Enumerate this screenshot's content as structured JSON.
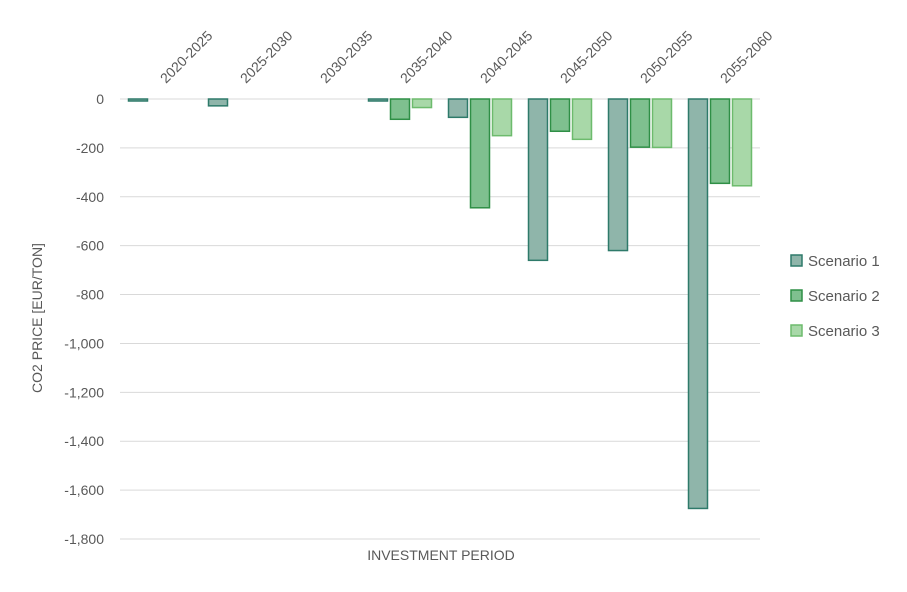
{
  "chart_data": {
    "type": "bar",
    "title": "",
    "xlabel": "INVESTMENT PERIOD",
    "ylabel": "CO2 PRICE [EUR/TON]",
    "ylim": [
      -1800,
      0
    ],
    "yticks": [
      0,
      -200,
      -400,
      -600,
      -800,
      -1000,
      -1200,
      -1400,
      -1600,
      -1800
    ],
    "ytick_labels": [
      "0",
      "-200",
      "-400",
      "-600",
      "-800",
      "-1,000",
      "-1,200",
      "-1,400",
      "-1,600",
      "-1,800"
    ],
    "grid": true,
    "legend_position": "right",
    "categories": [
      "2020-2025",
      "2025-2030",
      "2030-2035",
      "2035-2040",
      "2040-2045",
      "2045-2050",
      "2050-2055",
      "2055-2060"
    ],
    "series": [
      {
        "name": "Scenario 1",
        "values": [
          -3,
          -28,
          0,
          -8,
          -75,
          -660,
          -620,
          -1675
        ],
        "fill": "#8fb5aa",
        "stroke": "#2e7a6a"
      },
      {
        "name": "Scenario 2",
        "values": [
          0,
          0,
          0,
          -83,
          -445,
          -132,
          -197,
          -345
        ],
        "fill": "#7fc08f",
        "stroke": "#2f8f46"
      },
      {
        "name": "Scenario 3",
        "values": [
          0,
          0,
          0,
          -35,
          -150,
          -165,
          -198,
          -355
        ],
        "fill": "#a8d8a8",
        "stroke": "#6dbb6d"
      }
    ]
  }
}
